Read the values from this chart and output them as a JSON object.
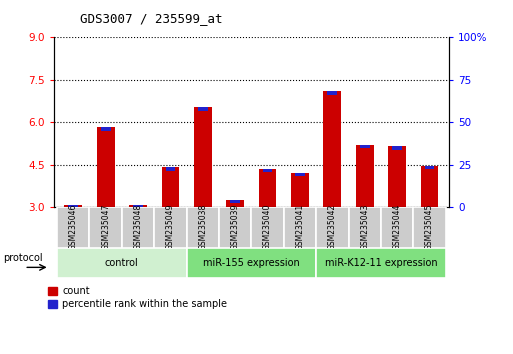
{
  "title": "GDS3007 / 235599_at",
  "samples": [
    "GSM235046",
    "GSM235047",
    "GSM235048",
    "GSM235049",
    "GSM235038",
    "GSM235039",
    "GSM235040",
    "GSM235041",
    "GSM235042",
    "GSM235043",
    "GSM235044",
    "GSM235045"
  ],
  "count_values": [
    3.07,
    5.82,
    3.07,
    4.42,
    6.55,
    3.25,
    4.35,
    4.2,
    7.1,
    5.2,
    5.15,
    4.45
  ],
  "blue_bar_heights": [
    0.06,
    0.15,
    0.08,
    0.15,
    0.15,
    0.1,
    0.1,
    0.1,
    0.15,
    0.12,
    0.12,
    0.1
  ],
  "ylim_left": [
    3.0,
    9.0
  ],
  "ylim_right": [
    0,
    100
  ],
  "yticks_left": [
    3.0,
    4.5,
    6.0,
    7.5,
    9.0
  ],
  "yticks_right": [
    0,
    25,
    50,
    75,
    100
  ],
  "group_boundaries": [
    {
      "start": 0,
      "end": 4,
      "label": "control",
      "facecolor": "#d0f0d0"
    },
    {
      "start": 4,
      "end": 8,
      "label": "miR-155 expression",
      "facecolor": "#80e080"
    },
    {
      "start": 8,
      "end": 12,
      "label": "miR-K12-11 expression",
      "facecolor": "#80e080"
    }
  ],
  "protocol_label": "protocol",
  "legend_count_label": "count",
  "legend_percentile_label": "percentile rank within the sample",
  "bar_color_red": "#cc0000",
  "bar_color_blue": "#2222cc",
  "bar_width": 0.55,
  "baseline": 3.0,
  "xtick_box_color": "#cccccc",
  "grid_color": "black"
}
